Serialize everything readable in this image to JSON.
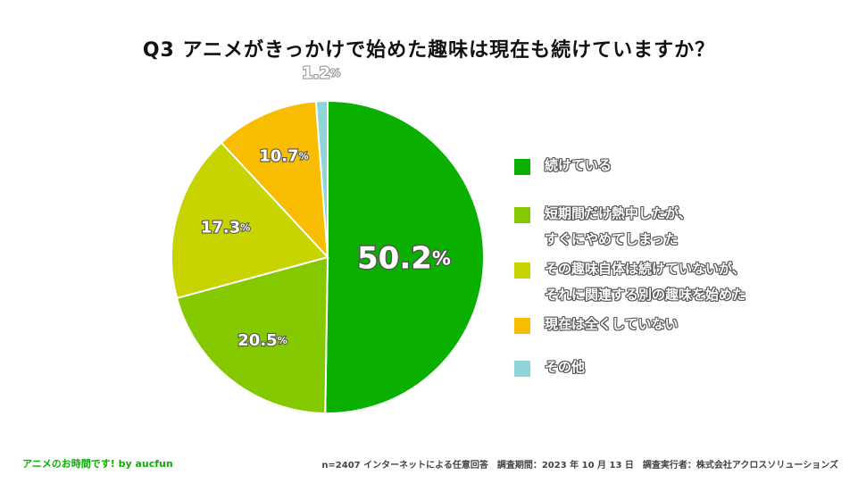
{
  "chart_data": {
    "type": "pie",
    "title": "Q3 アニメがきっかけで始めた趣味は現在も続けていますか？",
    "slices": [
      {
        "label": "続けている",
        "value": 50.2,
        "value_text": "50.2",
        "color": "#0ab000"
      },
      {
        "label": "短期間だけ熱中したが、\nすぐにやめてしまった",
        "value": 20.5,
        "value_text": "20.5",
        "color": "#84c800"
      },
      {
        "label": "その趣味自体は続けていないが、\nそれに関連する別の趣味を始めた",
        "value": 17.3,
        "value_text": "17.3",
        "color": "#c8d400"
      },
      {
        "label": "現在は全くしていない",
        "value": 10.7,
        "value_text": "10.7",
        "color": "#f8bc00"
      },
      {
        "label": "その他",
        "value": 1.2,
        "value_text": "1.2",
        "color": "#8fd4d8"
      }
    ],
    "unit": "%",
    "start_angle_deg": 0,
    "direction": "clockwise",
    "legend_position": "right"
  },
  "footer": {
    "brand": "アニメのお時間です! by aucfun",
    "source": "n=2407 インターネットによる任意回答　調査期間：2023 年 10 月 13 日　調査実行者：株式会社アクロスソリューションズ"
  }
}
